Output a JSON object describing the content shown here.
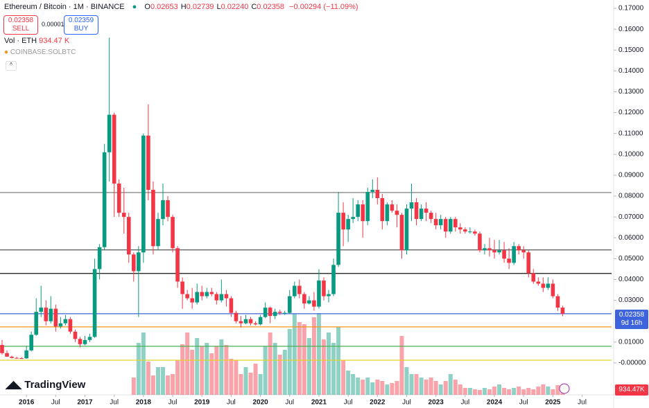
{
  "header": {
    "symbol": "Ethereum / Bitcoin · 1M · BINANCE",
    "ohlc": [
      {
        "key": "O",
        "text": "0.02653"
      },
      {
        "key": "H",
        "text": "0.02739"
      },
      {
        "key": "L",
        "text": "0.02240"
      },
      {
        "key": "C",
        "text": "0.02358"
      }
    ],
    "change": "−0.00294 (−11.09%)",
    "sell": {
      "price": "0.02358",
      "label": "SELL"
    },
    "spread": "0.00001",
    "buy": {
      "price": "0.02359",
      "label": "BUY"
    },
    "volume_title": "Vol · ETH",
    "volume_text": "934.47 K",
    "compare": "COINBASE:SOLBTC",
    "price_badge": "0.02358",
    "countdown": "9d 16h",
    "volume_badge": "934.47K",
    "brand": "TradingView"
  },
  "chart_data": {
    "type": "candlestick",
    "x": [
      "2015-08",
      "2015-09",
      "2015-10",
      "2015-11",
      "2015-12",
      "2016-01",
      "2016-02",
      "2016-03",
      "2016-04",
      "2016-05",
      "2016-06",
      "2016-07",
      "2016-08",
      "2016-09",
      "2016-10",
      "2016-11",
      "2016-12",
      "2017-01",
      "2017-02",
      "2017-03",
      "2017-04",
      "2017-05",
      "2017-06",
      "2017-07",
      "2017-08",
      "2017-09",
      "2017-10",
      "2017-11",
      "2017-12",
      "2018-01",
      "2018-02",
      "2018-03",
      "2018-04",
      "2018-05",
      "2018-06",
      "2018-07",
      "2018-08",
      "2018-09",
      "2018-10",
      "2018-11",
      "2018-12",
      "2019-01",
      "2019-02",
      "2019-03",
      "2019-04",
      "2019-05",
      "2019-06",
      "2019-07",
      "2019-08",
      "2019-09",
      "2019-10",
      "2019-11",
      "2019-12",
      "2020-01",
      "2020-02",
      "2020-03",
      "2020-04",
      "2020-05",
      "2020-06",
      "2020-07",
      "2020-08",
      "2020-09",
      "2020-10",
      "2020-11",
      "2020-12",
      "2021-01",
      "2021-02",
      "2021-03",
      "2021-04",
      "2021-05",
      "2021-06",
      "2021-07",
      "2021-08",
      "2021-09",
      "2021-10",
      "2021-11",
      "2021-12",
      "2022-01",
      "2022-02",
      "2022-03",
      "2022-04",
      "2022-05",
      "2022-06",
      "2022-07",
      "2022-08",
      "2022-09",
      "2022-10",
      "2022-11",
      "2022-12",
      "2023-01",
      "2023-02",
      "2023-03",
      "2023-04",
      "2023-05",
      "2023-06",
      "2023-07",
      "2023-08",
      "2023-09",
      "2023-10",
      "2023-11",
      "2023-12",
      "2024-01",
      "2024-02",
      "2024-03",
      "2024-04",
      "2024-05",
      "2024-06",
      "2024-07",
      "2024-08",
      "2024-09",
      "2024-10",
      "2024-11",
      "2024-12",
      "2025-01",
      "2025-02",
      "2025-03"
    ],
    "open": [
      0.0086,
      0.0047,
      0.003,
      0.0024,
      0.0023,
      0.0022,
      0.006,
      0.0135,
      0.0245,
      0.0265,
      0.02,
      0.026,
      0.0175,
      0.019,
      0.021,
      0.015,
      0.0115,
      0.009,
      0.011,
      0.0125,
      0.045,
      0.0555,
      0.101,
      0.119,
      0.086,
      0.072,
      0.07,
      0.052,
      0.044,
      0.053,
      0.109,
      0.083,
      0.056,
      0.069,
      0.078,
      0.07,
      0.055,
      0.039,
      0.033,
      0.031,
      0.029,
      0.034,
      0.032,
      0.034,
      0.033,
      0.03,
      0.033,
      0.031,
      0.024,
      0.02,
      0.019,
      0.021,
      0.019,
      0.0185,
      0.022,
      0.0265,
      0.0225,
      0.0245,
      0.024,
      0.024,
      0.032,
      0.037,
      0.033,
      0.0285,
      0.03,
      0.027,
      0.0395,
      0.032,
      0.033,
      0.047,
      0.072,
      0.064,
      0.069,
      0.07,
      0.076,
      0.068,
      0.082,
      0.083,
      0.079,
      0.068,
      0.076,
      0.073,
      0.071,
      0.054,
      0.074,
      0.077,
      0.069,
      0.074,
      0.072,
      0.069,
      0.066,
      0.069,
      0.063,
      0.069,
      0.065,
      0.064,
      0.063,
      0.063,
      0.062,
      0.054,
      0.055,
      0.054,
      0.053,
      0.054,
      0.05,
      0.048,
      0.056,
      0.054,
      0.053,
      0.043,
      0.039,
      0.038,
      0.036,
      0.038,
      0.032,
      0.02653
    ],
    "high": [
      0.011,
      0.006,
      0.0035,
      0.003,
      0.0028,
      0.008,
      0.015,
      0.031,
      0.037,
      0.03,
      0.032,
      0.028,
      0.022,
      0.023,
      0.022,
      0.016,
      0.0125,
      0.013,
      0.014,
      0.05,
      0.057,
      0.105,
      0.156,
      0.12,
      0.088,
      0.084,
      0.072,
      0.053,
      0.056,
      0.11,
      0.124,
      0.087,
      0.072,
      0.086,
      0.08,
      0.071,
      0.056,
      0.041,
      0.035,
      0.036,
      0.038,
      0.037,
      0.036,
      0.036,
      0.034,
      0.04,
      0.035,
      0.032,
      0.025,
      0.0225,
      0.023,
      0.022,
      0.02,
      0.023,
      0.029,
      0.027,
      0.026,
      0.0255,
      0.025,
      0.035,
      0.039,
      0.04,
      0.034,
      0.032,
      0.034,
      0.045,
      0.041,
      0.035,
      0.05,
      0.082,
      0.077,
      0.071,
      0.079,
      0.078,
      0.078,
      0.084,
      0.088,
      0.089,
      0.081,
      0.077,
      0.078,
      0.076,
      0.072,
      0.076,
      0.086,
      0.079,
      0.076,
      0.077,
      0.073,
      0.072,
      0.071,
      0.07,
      0.07,
      0.07,
      0.067,
      0.065,
      0.065,
      0.064,
      0.063,
      0.057,
      0.06,
      0.059,
      0.059,
      0.058,
      0.055,
      0.058,
      0.057,
      0.056,
      0.054,
      0.045,
      0.041,
      0.041,
      0.041,
      0.04,
      0.033,
      0.02739
    ],
    "low": [
      0.004,
      0.003,
      0.0022,
      0.002,
      0.002,
      0.002,
      0.0055,
      0.013,
      0.022,
      0.018,
      0.019,
      0.015,
      0.0165,
      0.018,
      0.014,
      0.01,
      0.0075,
      0.0085,
      0.01,
      0.012,
      0.04,
      0.054,
      0.087,
      0.07,
      0.07,
      0.062,
      0.048,
      0.039,
      0.022,
      0.048,
      0.078,
      0.052,
      0.054,
      0.066,
      0.068,
      0.053,
      0.036,
      0.026,
      0.03,
      0.026,
      0.028,
      0.03,
      0.031,
      0.032,
      0.028,
      0.029,
      0.027,
      0.022,
      0.019,
      0.017,
      0.0185,
      0.018,
      0.018,
      0.018,
      0.0215,
      0.019,
      0.021,
      0.023,
      0.023,
      0.0235,
      0.031,
      0.031,
      0.026,
      0.028,
      0.025,
      0.026,
      0.03,
      0.029,
      0.032,
      0.046,
      0.056,
      0.058,
      0.067,
      0.068,
      0.06,
      0.066,
      0.079,
      0.076,
      0.064,
      0.066,
      0.072,
      0.065,
      0.05,
      0.052,
      0.068,
      0.066,
      0.068,
      0.068,
      0.067,
      0.064,
      0.064,
      0.06,
      0.062,
      0.063,
      0.062,
      0.062,
      0.062,
      0.061,
      0.053,
      0.052,
      0.051,
      0.05,
      0.052,
      0.048,
      0.045,
      0.047,
      0.052,
      0.05,
      0.041,
      0.038,
      0.037,
      0.034,
      0.035,
      0.031,
      0.025,
      0.0224
    ],
    "close": [
      0.0047,
      0.003,
      0.0024,
      0.0023,
      0.0022,
      0.006,
      0.0135,
      0.0245,
      0.0265,
      0.02,
      0.026,
      0.0175,
      0.019,
      0.021,
      0.015,
      0.0115,
      0.009,
      0.011,
      0.0125,
      0.045,
      0.0555,
      0.101,
      0.119,
      0.086,
      0.072,
      0.07,
      0.052,
      0.044,
      0.053,
      0.109,
      0.083,
      0.056,
      0.069,
      0.078,
      0.07,
      0.055,
      0.039,
      0.033,
      0.031,
      0.029,
      0.034,
      0.032,
      0.034,
      0.033,
      0.03,
      0.033,
      0.031,
      0.024,
      0.02,
      0.019,
      0.021,
      0.019,
      0.0185,
      0.022,
      0.0265,
      0.0225,
      0.0245,
      0.024,
      0.024,
      0.032,
      0.037,
      0.033,
      0.0285,
      0.03,
      0.027,
      0.0395,
      0.032,
      0.033,
      0.047,
      0.072,
      0.064,
      0.069,
      0.07,
      0.076,
      0.068,
      0.082,
      0.083,
      0.079,
      0.068,
      0.076,
      0.073,
      0.071,
      0.054,
      0.074,
      0.077,
      0.069,
      0.074,
      0.072,
      0.069,
      0.066,
      0.069,
      0.063,
      0.069,
      0.065,
      0.064,
      0.063,
      0.063,
      0.062,
      0.054,
      0.055,
      0.054,
      0.053,
      0.054,
      0.05,
      0.048,
      0.056,
      0.054,
      0.053,
      0.043,
      0.039,
      0.038,
      0.036,
      0.038,
      0.032,
      0.02653,
      0.02358
    ],
    "volume": [
      null,
      null,
      null,
      null,
      null,
      null,
      null,
      null,
      null,
      null,
      null,
      null,
      null,
      null,
      null,
      null,
      null,
      null,
      null,
      null,
      null,
      null,
      null,
      null,
      null,
      null,
      null,
      1675000,
      5025000,
      6030000,
      3216000,
      1876000,
      2680000,
      2680000,
      1876000,
      2010000,
      3350000,
      4891000,
      6030000,
      4355000,
      5494000,
      4690000,
      5025000,
      4020000,
      4690000,
      5360000,
      4824000,
      3484000,
      3350000,
      2010000,
      2680000,
      2144000,
      3015000,
      2010000,
      4690000,
      6030000,
      5025000,
      3886000,
      4355000,
      6365000,
      7800000,
      7035000,
      6834000,
      5494000,
      7504000,
      7906000,
      5360000,
      6030000,
      5025000,
      6566000,
      3350000,
      2345000,
      2010000,
      1675000,
      1474000,
      1675000,
      1206000,
      1474000,
      1340000,
      1005000,
      1139000,
      1340000,
      5695000,
      2680000,
      2010000,
      2010000,
      1675000,
      1474000,
      1675000,
      1340000,
      1005000,
      1340000,
      2010000,
      1474000,
      1005000,
      670000,
      670000,
      536000,
      469000,
      670000,
      536000,
      804000,
      1005000,
      670000,
      536000,
      670000,
      804000,
      536000,
      670000,
      536000,
      804000,
      1005000,
      804000,
      536000,
      938000,
      934470
    ],
    "volume_lim": [
      0,
      8040000
    ],
    "up_color": "#089981",
    "down_color": "#f23645",
    "ylim": [
      -0.0153,
      0.174
    ],
    "yticks": [
      {
        "value": 0.17,
        "label": "0.17000"
      },
      {
        "value": 0.16,
        "label": "0.16000"
      },
      {
        "value": 0.15,
        "label": "0.15000"
      },
      {
        "value": 0.14,
        "label": "0.14000"
      },
      {
        "value": 0.13,
        "label": "0.13000"
      },
      {
        "value": 0.12,
        "label": "0.12000"
      },
      {
        "value": 0.11,
        "label": "0.11000"
      },
      {
        "value": 0.1,
        "label": "0.10000"
      },
      {
        "value": 0.09,
        "label": "0.09000"
      },
      {
        "value": 0.08,
        "label": "0.08000"
      },
      {
        "value": 0.07,
        "label": "0.07000"
      },
      {
        "value": 0.06,
        "label": "0.06000"
      },
      {
        "value": 0.05,
        "label": "0.05000"
      },
      {
        "value": 0.04,
        "label": "0.04000"
      },
      {
        "value": 0.03,
        "label": "0.03000"
      },
      {
        "value": 0.01,
        "label": "0.01000"
      },
      {
        "value": 0,
        "label": "-0.00000"
      }
    ],
    "xticks": [
      {
        "value": "2016-01",
        "label": "2016"
      },
      {
        "value": "2016-07",
        "label": "Jul"
      },
      {
        "value": "2017-01",
        "label": "2017"
      },
      {
        "value": "2017-07",
        "label": "Jul"
      },
      {
        "value": "2018-01",
        "label": "2018"
      },
      {
        "value": "2018-07",
        "label": "Jul"
      },
      {
        "value": "2019-01",
        "label": "2019"
      },
      {
        "value": "2019-07",
        "label": "Jul"
      },
      {
        "value": "2020-01",
        "label": "2020"
      },
      {
        "value": "2020-07",
        "label": "Jul"
      },
      {
        "value": "2021-01",
        "label": "2021"
      },
      {
        "value": "2021-07",
        "label": "Jul"
      },
      {
        "value": "2022-01",
        "label": "2022"
      },
      {
        "value": "2022-07",
        "label": "Jul"
      },
      {
        "value": "2023-01",
        "label": "2023"
      },
      {
        "value": "2023-07",
        "label": "Jul"
      },
      {
        "value": "2024-01",
        "label": "2024"
      },
      {
        "value": "2024-07",
        "label": "Jul"
      },
      {
        "value": "2025-01",
        "label": "2025"
      },
      {
        "value": "2025-07",
        "label": "Jul"
      }
    ],
    "levels": [
      {
        "value": 0.0817,
        "color": "#8a8a8a"
      },
      {
        "value": 0.0542,
        "color": "#555555"
      },
      {
        "value": 0.0429,
        "color": "#111111"
      },
      {
        "value": 0.0236,
        "color": "#3d63dd"
      },
      {
        "value": 0.0173,
        "color": "#f7931a"
      },
      {
        "value": 0.008,
        "color": "#4caf50"
      },
      {
        "value": 0.0013,
        "color": "#e6d22a"
      }
    ]
  }
}
